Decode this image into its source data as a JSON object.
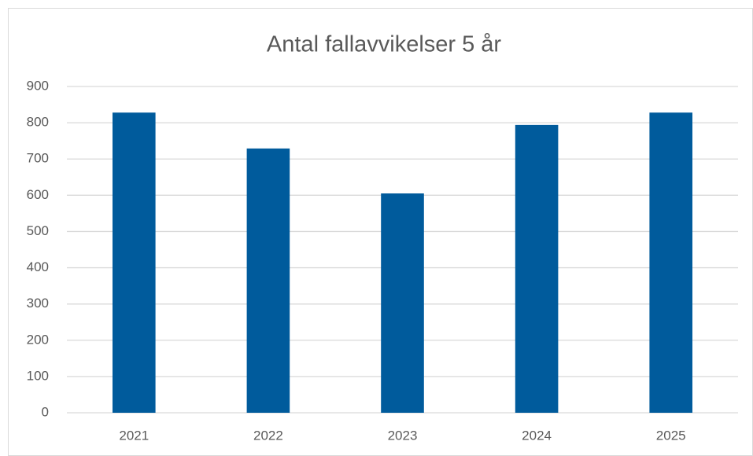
{
  "chart_data": {
    "type": "bar",
    "title": "Antal fallavvikelser 5 år",
    "categories": [
      "2021",
      "2022",
      "2023",
      "2024",
      "2025"
    ],
    "values": [
      828,
      729,
      605,
      794,
      828
    ],
    "color": "#005b9c",
    "ylim": [
      0,
      900
    ],
    "yticks": [
      0,
      100,
      200,
      300,
      400,
      500,
      600,
      700,
      800,
      900
    ],
    "grid": true
  }
}
